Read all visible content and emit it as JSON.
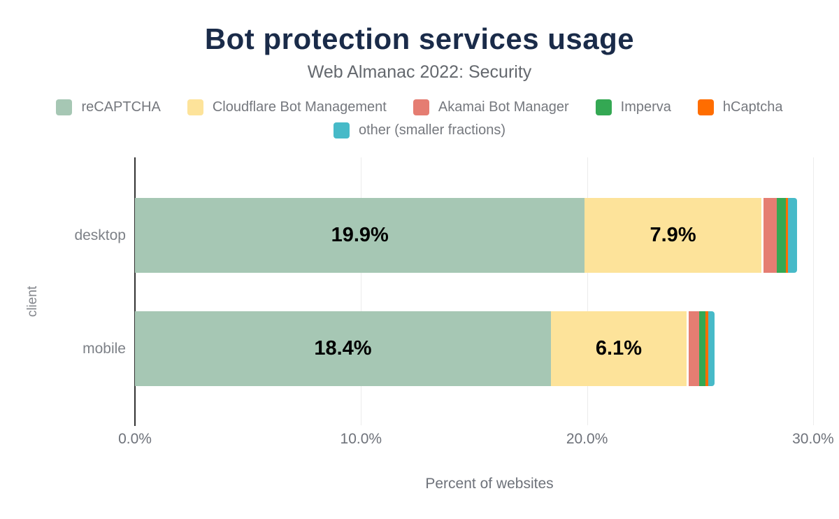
{
  "title": "Bot protection services usage",
  "subtitle": "Web Almanac 2022: Security",
  "chart_data": {
    "type": "bar",
    "orientation": "horizontal",
    "stacked": true,
    "categories": [
      "desktop",
      "mobile"
    ],
    "series": [
      {
        "name": "reCAPTCHA",
        "color": "#a6c7b4",
        "values": [
          19.9,
          18.4
        ]
      },
      {
        "name": "Cloudflare Bot Management",
        "color": "#fde39a",
        "values": [
          7.9,
          6.1
        ]
      },
      {
        "name": "Akamai Bot Manager",
        "color": "#e57d72",
        "values": [
          0.6,
          0.45
        ]
      },
      {
        "name": "Imperva",
        "color": "#34a853",
        "values": [
          0.4,
          0.3
        ]
      },
      {
        "name": "hCaptcha",
        "color": "#ff6d00",
        "values": [
          0.1,
          0.1
        ]
      },
      {
        "name": "other (smaller fractions)",
        "color": "#47bac8",
        "values": [
          0.4,
          0.3
        ]
      }
    ],
    "bar_labels": [
      [
        "19.9%",
        "7.9%"
      ],
      [
        "18.4%",
        "6.1%"
      ]
    ],
    "x_ticks": [
      {
        "label": "0.0%",
        "value": 0
      },
      {
        "label": "10.0%",
        "value": 10
      },
      {
        "label": "20.0%",
        "value": 20
      },
      {
        "label": "30.0%",
        "value": 30
      }
    ],
    "xlim": [
      0,
      30
    ],
    "xlabel": "Percent of websites",
    "ylabel": "client",
    "grid": true,
    "legend_position": "top"
  }
}
